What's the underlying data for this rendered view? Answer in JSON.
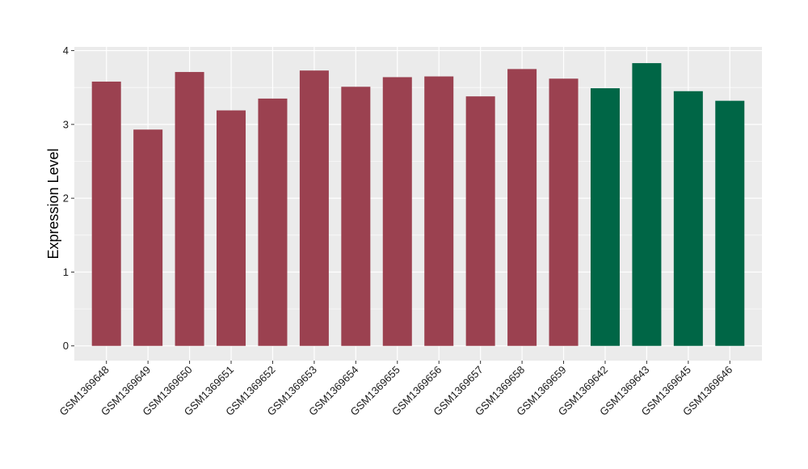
{
  "chart_data": {
    "type": "bar",
    "title": "",
    "xlabel": "",
    "ylabel": "Expression Level",
    "ylim": [
      -0.2,
      4.05
    ],
    "yticks": [
      0,
      1,
      2,
      3,
      4
    ],
    "grid": true,
    "legend": "none",
    "categories": [
      "GSM1369648",
      "GSM1369649",
      "GSM1369650",
      "GSM1369651",
      "GSM1369652",
      "GSM1369653",
      "GSM1369654",
      "GSM1369655",
      "GSM1369656",
      "GSM1369657",
      "GSM1369658",
      "GSM1369659",
      "GSM1369642",
      "GSM1369643",
      "GSM1369645",
      "GSM1369646"
    ],
    "values": [
      3.58,
      2.93,
      3.71,
      3.19,
      3.35,
      3.73,
      3.51,
      3.64,
      3.65,
      3.38,
      3.75,
      3.62,
      3.49,
      3.83,
      3.45,
      3.32
    ],
    "groups": [
      "a",
      "a",
      "a",
      "a",
      "a",
      "a",
      "a",
      "a",
      "a",
      "a",
      "a",
      "a",
      "b",
      "b",
      "b",
      "b"
    ],
    "colors": {
      "a": "#9b4150",
      "b": "#006646"
    },
    "panel_background": "#ebebeb",
    "gridline_color": "#ffffff"
  }
}
